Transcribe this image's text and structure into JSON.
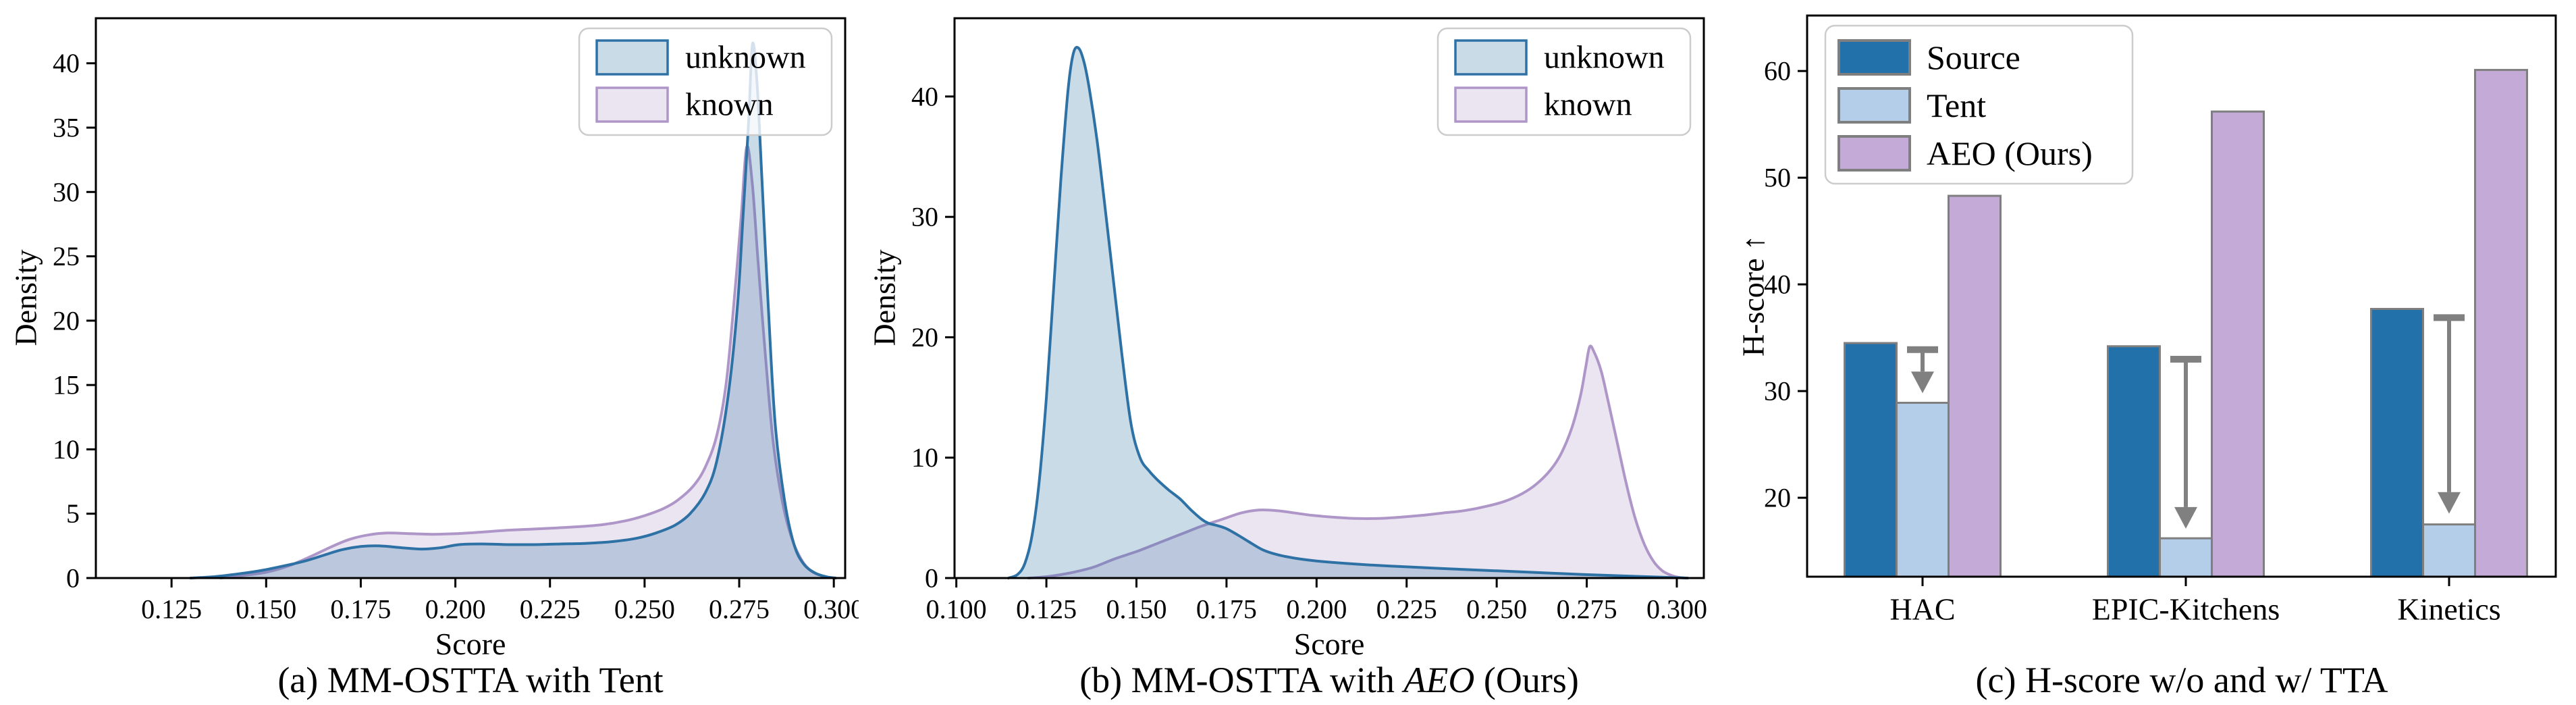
{
  "figure": {
    "background": "#ffffff",
    "text_color": "#000000",
    "spine_color": "#000000"
  },
  "chart_data": [
    {
      "id": "a",
      "type": "area",
      "title": "(a) MM-OSTTA with Tent",
      "title_parts": [
        {
          "t": "(a) MM-OSTTA with Tent"
        }
      ],
      "xlabel": "Score",
      "ylabel": "Density",
      "xlim": [
        0.105,
        0.303
      ],
      "ylim": [
        0,
        43.5
      ],
      "xticks": [
        0.125,
        0.15,
        0.175,
        0.2,
        0.225,
        0.25,
        0.275,
        0.3
      ],
      "xtick_decimals": 3,
      "yticks": [
        0,
        5,
        10,
        15,
        20,
        25,
        30,
        35,
        40
      ],
      "grid": false,
      "legend": {
        "position": "top-right",
        "items": [
          {
            "label": "unknown",
            "stroke": "#2d71a5",
            "fill": "rgba(45,113,165,0.25)"
          },
          {
            "label": "known",
            "stroke": "#af96c8",
            "fill": "rgba(175,150,200,0.25)"
          }
        ]
      },
      "series": [
        {
          "name": "known",
          "stroke": "#af96c8",
          "fill": "rgba(175,150,200,0.25)",
          "points": [
            [
              0.138,
              0
            ],
            [
              0.144,
              0.2
            ],
            [
              0.15,
              0.45
            ],
            [
              0.156,
              0.95
            ],
            [
              0.162,
              1.7
            ],
            [
              0.167,
              2.4
            ],
            [
              0.172,
              3.0
            ],
            [
              0.177,
              3.35
            ],
            [
              0.182,
              3.5
            ],
            [
              0.188,
              3.45
            ],
            [
              0.194,
              3.4
            ],
            [
              0.2,
              3.45
            ],
            [
              0.206,
              3.55
            ],
            [
              0.213,
              3.7
            ],
            [
              0.22,
              3.8
            ],
            [
              0.227,
              3.9
            ],
            [
              0.233,
              4.0
            ],
            [
              0.239,
              4.15
            ],
            [
              0.245,
              4.45
            ],
            [
              0.25,
              4.85
            ],
            [
              0.255,
              5.4
            ],
            [
              0.259,
              6.1
            ],
            [
              0.263,
              7.2
            ],
            [
              0.266,
              8.6
            ],
            [
              0.269,
              11
            ],
            [
              0.2715,
              15
            ],
            [
              0.2735,
              21
            ],
            [
              0.2755,
              28
            ],
            [
              0.277,
              33.5
            ],
            [
              0.2785,
              30.5
            ],
            [
              0.28,
              24.5
            ],
            [
              0.282,
              17
            ],
            [
              0.284,
              10.5
            ],
            [
              0.2865,
              5.8
            ],
            [
              0.289,
              3.0
            ],
            [
              0.2915,
              1.4
            ],
            [
              0.294,
              0.55
            ],
            [
              0.297,
              0.15
            ],
            [
              0.3,
              0
            ]
          ]
        },
        {
          "name": "unknown",
          "stroke": "#2d71a5",
          "fill": "rgba(45,113,165,0.25)",
          "points": [
            [
              0.13,
              0
            ],
            [
              0.136,
              0.1
            ],
            [
              0.142,
              0.3
            ],
            [
              0.148,
              0.55
            ],
            [
              0.154,
              0.9
            ],
            [
              0.16,
              1.3
            ],
            [
              0.165,
              1.75
            ],
            [
              0.17,
              2.2
            ],
            [
              0.175,
              2.45
            ],
            [
              0.18,
              2.5
            ],
            [
              0.186,
              2.35
            ],
            [
              0.191,
              2.25
            ],
            [
              0.196,
              2.35
            ],
            [
              0.201,
              2.6
            ],
            [
              0.207,
              2.65
            ],
            [
              0.214,
              2.6
            ],
            [
              0.221,
              2.6
            ],
            [
              0.228,
              2.65
            ],
            [
              0.235,
              2.7
            ],
            [
              0.242,
              2.85
            ],
            [
              0.248,
              3.1
            ],
            [
              0.253,
              3.5
            ],
            [
              0.258,
              4.1
            ],
            [
              0.262,
              5.0
            ],
            [
              0.266,
              6.6
            ],
            [
              0.269,
              9.0
            ],
            [
              0.272,
              14
            ],
            [
              0.2745,
              21
            ],
            [
              0.276,
              28
            ],
            [
              0.2775,
              35.5
            ],
            [
              0.2785,
              41.5
            ],
            [
              0.2797,
              38.5
            ],
            [
              0.281,
              31
            ],
            [
              0.2827,
              21
            ],
            [
              0.2845,
              12
            ],
            [
              0.287,
              6
            ],
            [
              0.2895,
              2.6
            ],
            [
              0.292,
              1.1
            ],
            [
              0.295,
              0.4
            ],
            [
              0.298,
              0.1
            ],
            [
              0.3005,
              0
            ]
          ]
        }
      ]
    },
    {
      "id": "b",
      "type": "area",
      "title": "(b) MM-OSTTA with AEO (Ours)",
      "title_parts": [
        {
          "t": "(b) MM-OSTTA with "
        },
        {
          "t": "AEO",
          "italic": true
        },
        {
          "t": " (Ours)"
        }
      ],
      "xlabel": "Score",
      "ylabel": "Density",
      "xlim": [
        0.0995,
        0.3075
      ],
      "ylim": [
        0,
        46.5
      ],
      "xticks": [
        0.1,
        0.125,
        0.15,
        0.175,
        0.2,
        0.225,
        0.25,
        0.275,
        0.3
      ],
      "xtick_decimals": 3,
      "yticks": [
        0,
        10,
        20,
        30,
        40
      ],
      "grid": false,
      "legend": {
        "position": "top-right",
        "items": [
          {
            "label": "unknown",
            "stroke": "#2d71a5",
            "fill": "rgba(45,113,165,0.25)"
          },
          {
            "label": "known",
            "stroke": "#af96c8",
            "fill": "rgba(175,150,200,0.25)"
          }
        ]
      },
      "series": [
        {
          "name": "known",
          "stroke": "#af96c8",
          "fill": "rgba(175,150,200,0.25)",
          "points": [
            [
              0.12,
              0
            ],
            [
              0.126,
              0.15
            ],
            [
              0.132,
              0.45
            ],
            [
              0.138,
              0.9
            ],
            [
              0.144,
              1.6
            ],
            [
              0.15,
              2.2
            ],
            [
              0.156,
              2.9
            ],
            [
              0.162,
              3.6
            ],
            [
              0.168,
              4.3
            ],
            [
              0.174,
              4.9
            ],
            [
              0.179,
              5.4
            ],
            [
              0.184,
              5.65
            ],
            [
              0.189,
              5.6
            ],
            [
              0.194,
              5.4
            ],
            [
              0.199,
              5.2
            ],
            [
              0.205,
              5.05
            ],
            [
              0.211,
              4.95
            ],
            [
              0.217,
              4.95
            ],
            [
              0.223,
              5.05
            ],
            [
              0.229,
              5.2
            ],
            [
              0.235,
              5.4
            ],
            [
              0.241,
              5.6
            ],
            [
              0.247,
              5.95
            ],
            [
              0.252,
              6.35
            ],
            [
              0.257,
              7.0
            ],
            [
              0.261,
              7.8
            ],
            [
              0.265,
              9.0
            ],
            [
              0.268,
              10.4
            ],
            [
              0.271,
              12.6
            ],
            [
              0.2733,
              15.2
            ],
            [
              0.2747,
              17.5
            ],
            [
              0.2758,
              19.2
            ],
            [
              0.277,
              18.8
            ],
            [
              0.279,
              17.2
            ],
            [
              0.281,
              14.6
            ],
            [
              0.2835,
              11.2
            ],
            [
              0.286,
              7.8
            ],
            [
              0.2885,
              4.9
            ],
            [
              0.291,
              2.8
            ],
            [
              0.2935,
              1.4
            ],
            [
              0.296,
              0.6
            ],
            [
              0.2985,
              0.22
            ],
            [
              0.3005,
              0.06
            ],
            [
              0.3025,
              0
            ]
          ]
        },
        {
          "name": "unknown",
          "stroke": "#2d71a5",
          "fill": "rgba(45,113,165,0.25)",
          "points": [
            [
              0.1145,
              0
            ],
            [
              0.117,
              0.3
            ],
            [
              0.119,
              1.2
            ],
            [
              0.121,
              3.5
            ],
            [
              0.123,
              8
            ],
            [
              0.125,
              15
            ],
            [
              0.127,
              24
            ],
            [
              0.129,
              33
            ],
            [
              0.131,
              40.5
            ],
            [
              0.1325,
              43.6
            ],
            [
              0.134,
              44
            ],
            [
              0.1355,
              42.8
            ],
            [
              0.137,
              40.5
            ],
            [
              0.139,
              36.5
            ],
            [
              0.141,
              31.5
            ],
            [
              0.1435,
              25
            ],
            [
              0.146,
              18.5
            ],
            [
              0.1485,
              12.8
            ],
            [
              0.151,
              10
            ],
            [
              0.1535,
              8.9
            ],
            [
              0.156,
              8.1
            ],
            [
              0.159,
              7.3
            ],
            [
              0.162,
              6.6
            ],
            [
              0.165,
              5.7
            ],
            [
              0.168,
              4.9
            ],
            [
              0.17,
              4.55
            ],
            [
              0.1725,
              4.35
            ],
            [
              0.175,
              4.1
            ],
            [
              0.178,
              3.6
            ],
            [
              0.181,
              3.05
            ],
            [
              0.185,
              2.35
            ],
            [
              0.189,
              1.95
            ],
            [
              0.194,
              1.65
            ],
            [
              0.2,
              1.42
            ],
            [
              0.208,
              1.22
            ],
            [
              0.217,
              1.05
            ],
            [
              0.226,
              0.92
            ],
            [
              0.238,
              0.75
            ],
            [
              0.25,
              0.6
            ],
            [
              0.262,
              0.45
            ],
            [
              0.274,
              0.3
            ],
            [
              0.286,
              0.17
            ],
            [
              0.296,
              0.07
            ],
            [
              0.303,
              0
            ]
          ]
        }
      ]
    },
    {
      "id": "c",
      "type": "bar",
      "title": "(c) H-score w/o and w/ TTA",
      "title_parts": [
        {
          "t": "(c) H-score w/o and w/ TTA"
        }
      ],
      "ylabel": "H-score ↑",
      "categories": [
        "HAC",
        "EPIC-Kitchens",
        "Kinetics"
      ],
      "series": [
        {
          "name": "Source",
          "color": "#2371ab",
          "values": [
            34.5,
            34.2,
            37.7
          ]
        },
        {
          "name": "Tent",
          "color": "#b4cde8",
          "values": [
            28.9,
            16.2,
            17.5
          ]
        },
        {
          "name": "AEO (Ours)",
          "color": "#c4aad6",
          "values": [
            48.3,
            56.2,
            60.1
          ]
        }
      ],
      "bar_edge_color": "#7f7f7f",
      "ylim": [
        12.6,
        65.2
      ],
      "yticks": [
        20,
        30,
        40,
        50,
        60
      ],
      "grid": false,
      "drop_arrows": {
        "color": "#808080",
        "items": [
          {
            "category": "HAC",
            "from": 34.2,
            "to": 29.8
          },
          {
            "category": "EPIC-Kitchens",
            "from": 33.3,
            "to": 17.1
          },
          {
            "category": "Kinetics",
            "from": 37.2,
            "to": 18.5
          }
        ]
      },
      "legend": {
        "position": "top-left",
        "items": [
          {
            "label": "Source",
            "fill": "#2371ab",
            "stroke": "#7f7f7f"
          },
          {
            "label": "Tent",
            "fill": "#b4cde8",
            "stroke": "#7f7f7f"
          },
          {
            "label": "AEO (Ours)",
            "fill": "#c4aad6",
            "stroke": "#7f7f7f"
          }
        ]
      }
    }
  ]
}
